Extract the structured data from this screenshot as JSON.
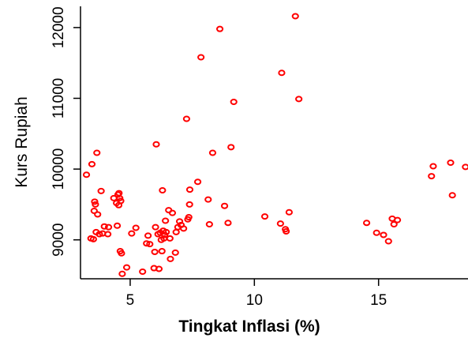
{
  "chart_data": {
    "type": "scatter",
    "xlabel": "Tingkat Inflasi (%)",
    "ylabel": "Kurs Rupiah",
    "xlim": [
      3.0,
      18.6
    ],
    "ylim": [
      8450,
      12300
    ],
    "x_ticks": [
      5,
      10,
      15
    ],
    "y_ticks": [
      9000,
      10000,
      11000,
      12000
    ],
    "grid": false,
    "marker": "open-circle",
    "point_color": "#ff0000",
    "points": [
      {
        "x": 3.24,
        "y": 9920
      },
      {
        "x": 3.42,
        "y": 9020
      },
      {
        "x": 3.46,
        "y": 10070
      },
      {
        "x": 3.52,
        "y": 9010
      },
      {
        "x": 3.55,
        "y": 9410
      },
      {
        "x": 3.57,
        "y": 9540
      },
      {
        "x": 3.6,
        "y": 9500
      },
      {
        "x": 3.63,
        "y": 9110
      },
      {
        "x": 3.66,
        "y": 10230
      },
      {
        "x": 3.69,
        "y": 9360
      },
      {
        "x": 3.76,
        "y": 9080
      },
      {
        "x": 3.83,
        "y": 9690
      },
      {
        "x": 3.89,
        "y": 9090
      },
      {
        "x": 3.96,
        "y": 9190
      },
      {
        "x": 4.1,
        "y": 9080
      },
      {
        "x": 4.13,
        "y": 9180
      },
      {
        "x": 4.34,
        "y": 9590
      },
      {
        "x": 4.45,
        "y": 9520
      },
      {
        "x": 4.48,
        "y": 9200
      },
      {
        "x": 4.51,
        "y": 9640
      },
      {
        "x": 4.54,
        "y": 9490
      },
      {
        "x": 4.55,
        "y": 9660
      },
      {
        "x": 4.58,
        "y": 9590
      },
      {
        "x": 4.62,
        "y": 9550
      },
      {
        "x": 4.6,
        "y": 8840
      },
      {
        "x": 4.65,
        "y": 8810
      },
      {
        "x": 4.68,
        "y": 8520
      },
      {
        "x": 4.86,
        "y": 8610
      },
      {
        "x": 5.06,
        "y": 9090
      },
      {
        "x": 5.23,
        "y": 9170
      },
      {
        "x": 5.5,
        "y": 8550
      },
      {
        "x": 5.66,
        "y": 8950
      },
      {
        "x": 5.72,
        "y": 9060
      },
      {
        "x": 5.79,
        "y": 8940
      },
      {
        "x": 5.96,
        "y": 8600
      },
      {
        "x": 5.99,
        "y": 8830
      },
      {
        "x": 6.02,
        "y": 9180
      },
      {
        "x": 6.05,
        "y": 10350
      },
      {
        "x": 6.12,
        "y": 9080
      },
      {
        "x": 6.16,
        "y": 8590
      },
      {
        "x": 6.21,
        "y": 9100
      },
      {
        "x": 6.25,
        "y": 9000
      },
      {
        "x": 6.28,
        "y": 8840
      },
      {
        "x": 6.3,
        "y": 9700
      },
      {
        "x": 6.33,
        "y": 9130
      },
      {
        "x": 6.36,
        "y": 9020
      },
      {
        "x": 6.39,
        "y": 9070
      },
      {
        "x": 6.42,
        "y": 9270
      },
      {
        "x": 6.45,
        "y": 9110
      },
      {
        "x": 6.55,
        "y": 9420
      },
      {
        "x": 6.6,
        "y": 9020
      },
      {
        "x": 6.62,
        "y": 8730
      },
      {
        "x": 6.7,
        "y": 9380
      },
      {
        "x": 6.82,
        "y": 8820
      },
      {
        "x": 6.85,
        "y": 9110
      },
      {
        "x": 6.92,
        "y": 9180
      },
      {
        "x": 6.99,
        "y": 9260
      },
      {
        "x": 7.05,
        "y": 9210
      },
      {
        "x": 7.15,
        "y": 9160
      },
      {
        "x": 7.27,
        "y": 10710
      },
      {
        "x": 7.32,
        "y": 9290
      },
      {
        "x": 7.36,
        "y": 9320
      },
      {
        "x": 7.39,
        "y": 9500
      },
      {
        "x": 7.4,
        "y": 9710
      },
      {
        "x": 7.72,
        "y": 9820
      },
      {
        "x": 7.85,
        "y": 11580
      },
      {
        "x": 8.14,
        "y": 9570
      },
      {
        "x": 8.19,
        "y": 9220
      },
      {
        "x": 8.32,
        "y": 10230
      },
      {
        "x": 8.61,
        "y": 11980
      },
      {
        "x": 8.8,
        "y": 9480
      },
      {
        "x": 8.94,
        "y": 9240
      },
      {
        "x": 9.06,
        "y": 10310
      },
      {
        "x": 9.17,
        "y": 10950
      },
      {
        "x": 10.42,
        "y": 9330
      },
      {
        "x": 11.05,
        "y": 9230
      },
      {
        "x": 11.1,
        "y": 11360
      },
      {
        "x": 11.25,
        "y": 9150
      },
      {
        "x": 11.28,
        "y": 9120
      },
      {
        "x": 11.4,
        "y": 9390
      },
      {
        "x": 11.65,
        "y": 12160
      },
      {
        "x": 11.79,
        "y": 10990
      },
      {
        "x": 14.52,
        "y": 9240
      },
      {
        "x": 14.92,
        "y": 9100
      },
      {
        "x": 15.2,
        "y": 9070
      },
      {
        "x": 15.4,
        "y": 8980
      },
      {
        "x": 15.55,
        "y": 9300
      },
      {
        "x": 15.62,
        "y": 9220
      },
      {
        "x": 15.76,
        "y": 9280
      },
      {
        "x": 17.13,
        "y": 9900
      },
      {
        "x": 17.2,
        "y": 10040
      },
      {
        "x": 17.9,
        "y": 10090
      },
      {
        "x": 17.97,
        "y": 9630
      },
      {
        "x": 18.5,
        "y": 10030
      }
    ]
  }
}
